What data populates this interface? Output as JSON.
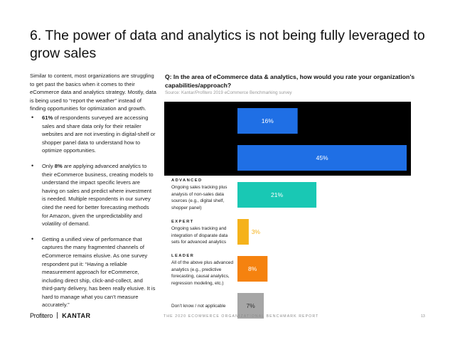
{
  "page": {
    "title": "6. The power of data and analytics is not being fully leveraged to grow sales",
    "intro": "Similar to content, most organizations are struggling to get past the basics when it comes to their eCommerce data and analytics strategy. Mostly, data is being used to “report the weather” instead of finding opportunities for optimization and growth.",
    "bullets": [
      {
        "strong": "61%",
        "text": " of respondents surveyed are accessing sales and share data only for their retailer websites and are not investing in digital-shelf or shopper panel data to understand how to optimize opportunities."
      },
      {
        "prefix": "Only ",
        "strong": "8%",
        "text": " are applying advanced analytics to their eCommerce business, creating models to understand the impact specific levers are having on sales and predict where investment is needed. Multiple respondents in our survey cited the need for better forecasting methods for Amazon, given the unpredictability and volatility of demand."
      },
      {
        "text": "Getting a unified view of performance that captures the many fragmented channels of eCommerce remains elusive. As one survey respondent put it: “Having a reliable measurement approach for eCommerce, including direct ship, click-and-collect, and third-party delivery, has been really elusive. It is hard to manage what you can’t measure accurately.”"
      }
    ],
    "footer_logo_profitero": "Profitero",
    "footer_logo_kantar": "KANTAR",
    "footer_text": "THE 2020 ECOMMERCE ORGANIZATIONAL BENCHMARK REPORT",
    "page_number": "13"
  },
  "chart_data": {
    "type": "bar",
    "orientation": "horizontal",
    "title": "Q: In the area of eCommerce data & analytics, how would you rate your organization’s capabilities/approach?",
    "source": "Source: Kantar/Profitero 2019 eCommerce Benchmarking survey",
    "categories": [
      {
        "head": "",
        "label": ""
      },
      {
        "head": "",
        "label": ""
      },
      {
        "head": "ADVANCED",
        "label": "Ongoing sales tracking plus analysis of non-sales data sources (e.g., digital shelf, shopper panel)"
      },
      {
        "head": "EXPERT",
        "label": "Ongoing sales tracking and integration of disparate data sets for advanced analytics"
      },
      {
        "head": "LEADER",
        "label": "All of the above plus advanced analytics (e.g., predictive forecasting, causal analytics, regression modeling, etc.)"
      },
      {
        "head": "",
        "label": "Don’t know / not applicable"
      }
    ],
    "values": [
      16,
      45,
      21,
      3,
      8,
      7
    ],
    "value_labels": [
      "16%",
      "45%",
      "21%",
      "3%",
      "8%",
      "7%"
    ],
    "colors": [
      "#1f6fe5",
      "#1f6fe5",
      "#19c8b4",
      "#f5b21a",
      "#f5820f",
      "#a6a6a6"
    ],
    "label_colors": [
      "#ffffff",
      "#ffffff",
      "#ffffff",
      "#f5b21a",
      "#ffffff",
      "#333333"
    ],
    "xlim": [
      0,
      45
    ],
    "grid": false,
    "legend": "none"
  }
}
